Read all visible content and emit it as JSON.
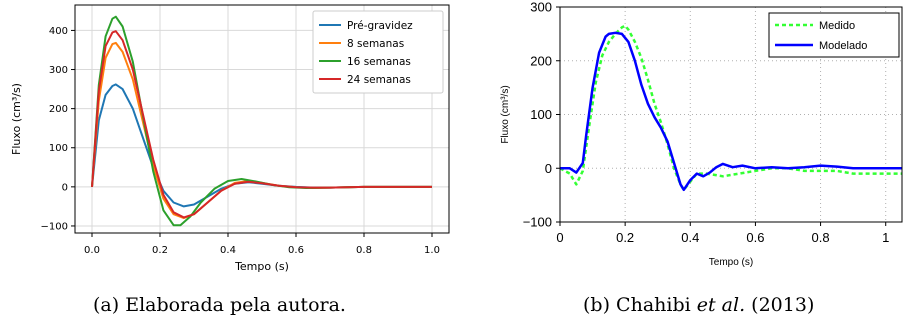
{
  "captions": [
    {
      "label": "(a)",
      "text": "Elaborada pela autora."
    },
    {
      "label": "(b)",
      "author": "Chahibi",
      "etal": "et al.",
      "year": "(2013)"
    }
  ],
  "chart_data": [
    {
      "type": "line",
      "title": "",
      "xlabel": "Tempo (s)",
      "ylabel": "Fluxo (cm³/s)",
      "xlim": [
        -0.05,
        1.05
      ],
      "ylim": [
        -118,
        465
      ],
      "xticks": [
        0.0,
        0.2,
        0.4,
        0.6,
        0.8,
        1.0
      ],
      "xtick_labels": [
        "0.0",
        "0.2",
        "0.4",
        "0.6",
        "0.8",
        "1.0"
      ],
      "yticks": [
        -100,
        0,
        100,
        200,
        300,
        400
      ],
      "ytick_labels": [
        "−100",
        "0",
        "100",
        "200",
        "300",
        "400"
      ],
      "grid": true,
      "legend": "top-right",
      "series": [
        {
          "name": "Pré-gravidez",
          "color": "#1f77b4",
          "x": [
            0,
            0.02,
            0.04,
            0.06,
            0.07,
            0.09,
            0.12,
            0.15,
            0.18,
            0.21,
            0.24,
            0.27,
            0.3,
            0.34,
            0.38,
            0.42,
            0.46,
            0.5,
            0.55,
            0.6,
            0.65,
            0.7,
            0.8,
            0.9,
            1.0
          ],
          "y": [
            0,
            170,
            235,
            258,
            262,
            250,
            200,
            125,
            50,
            -10,
            -40,
            -50,
            -45,
            -25,
            -5,
            8,
            12,
            8,
            3,
            0,
            -2,
            -2,
            0,
            0,
            0
          ]
        },
        {
          "name": "8 semanas",
          "color": "#ff7f0e",
          "x": [
            0,
            0.02,
            0.04,
            0.06,
            0.07,
            0.09,
            0.12,
            0.15,
            0.18,
            0.21,
            0.24,
            0.27,
            0.3,
            0.34,
            0.38,
            0.42,
            0.46,
            0.5,
            0.55,
            0.6,
            0.65,
            0.7,
            0.8,
            0.9,
            1.0
          ],
          "y": [
            0,
            220,
            330,
            365,
            368,
            345,
            275,
            165,
            55,
            -30,
            -70,
            -80,
            -70,
            -40,
            -10,
            10,
            15,
            10,
            3,
            -1,
            -3,
            -2,
            0,
            0,
            0
          ]
        },
        {
          "name": "16 semanas",
          "color": "#2ca02c",
          "x": [
            0,
            0.02,
            0.04,
            0.06,
            0.07,
            0.09,
            0.12,
            0.15,
            0.18,
            0.21,
            0.24,
            0.26,
            0.29,
            0.32,
            0.36,
            0.4,
            0.44,
            0.48,
            0.53,
            0.58,
            0.63,
            0.7,
            0.8,
            0.9,
            1.0
          ],
          "y": [
            0,
            260,
            385,
            430,
            435,
            410,
            320,
            180,
            40,
            -60,
            -98,
            -98,
            -75,
            -40,
            -5,
            15,
            20,
            14,
            5,
            -1,
            -3,
            -2,
            0,
            0,
            0
          ]
        },
        {
          "name": "24 semanas",
          "color": "#d62728",
          "x": [
            0,
            0.02,
            0.04,
            0.06,
            0.07,
            0.09,
            0.12,
            0.15,
            0.18,
            0.21,
            0.24,
            0.27,
            0.3,
            0.34,
            0.38,
            0.42,
            0.46,
            0.5,
            0.55,
            0.6,
            0.65,
            0.7,
            0.8,
            0.9,
            1.0
          ],
          "y": [
            0,
            245,
            360,
            395,
            398,
            375,
            300,
            185,
            70,
            -20,
            -65,
            -78,
            -70,
            -40,
            -10,
            8,
            13,
            9,
            3,
            -1,
            -2,
            -2,
            0,
            0,
            0
          ]
        }
      ]
    },
    {
      "type": "line",
      "title": "",
      "xlabel": "Tempo (s)",
      "ylabel": "Fluxo (cm³/s)",
      "xlim": [
        0,
        1.05
      ],
      "ylim": [
        -100,
        300
      ],
      "xticks": [
        0,
        0.2,
        0.4,
        0.6,
        0.8,
        1
      ],
      "xtick_labels": [
        "0",
        "0.2",
        "0.4",
        "0.6",
        "0.8",
        "1"
      ],
      "yticks": [
        -100,
        0,
        100,
        200,
        300
      ],
      "ytick_labels": [
        "−100",
        "0",
        "100",
        "200",
        "300"
      ],
      "grid": true,
      "legend": "top-right",
      "series": [
        {
          "name": "Medido",
          "color": "#33ff33",
          "dash": true,
          "x": [
            0,
            0.03,
            0.05,
            0.07,
            0.09,
            0.11,
            0.13,
            0.15,
            0.17,
            0.19,
            0.2,
            0.21,
            0.23,
            0.25,
            0.27,
            0.29,
            0.31,
            0.33,
            0.35,
            0.37,
            0.38,
            0.4,
            0.42,
            0.45,
            0.5,
            0.55,
            0.6,
            0.65,
            0.7,
            0.75,
            0.8,
            0.85,
            0.9,
            0.95,
            1.0,
            1.05
          ],
          "y": [
            0,
            -10,
            -30,
            -5,
            80,
            160,
            210,
            235,
            250,
            262,
            265,
            258,
            235,
            205,
            165,
            120,
            85,
            45,
            0,
            -30,
            -40,
            -25,
            -10,
            -10,
            -15,
            -10,
            -5,
            0,
            0,
            -5,
            -5,
            -5,
            -10,
            -10,
            -10,
            -10
          ]
        },
        {
          "name": "Modelado",
          "color": "#0000ff",
          "dash": false,
          "x": [
            0,
            0.03,
            0.05,
            0.07,
            0.08,
            0.1,
            0.12,
            0.14,
            0.15,
            0.17,
            0.19,
            0.21,
            0.23,
            0.25,
            0.27,
            0.29,
            0.31,
            0.33,
            0.35,
            0.37,
            0.38,
            0.4,
            0.42,
            0.44,
            0.46,
            0.48,
            0.5,
            0.53,
            0.56,
            0.6,
            0.65,
            0.7,
            0.75,
            0.8,
            0.85,
            0.9,
            0.95,
            1.0,
            1.05
          ],
          "y": [
            0,
            0,
            -8,
            10,
            60,
            150,
            215,
            245,
            250,
            252,
            250,
            235,
            200,
            155,
            120,
            95,
            75,
            50,
            10,
            -30,
            -40,
            -22,
            -10,
            -15,
            -8,
            2,
            8,
            2,
            5,
            0,
            2,
            0,
            2,
            5,
            3,
            0,
            0,
            0,
            0
          ]
        }
      ]
    }
  ]
}
